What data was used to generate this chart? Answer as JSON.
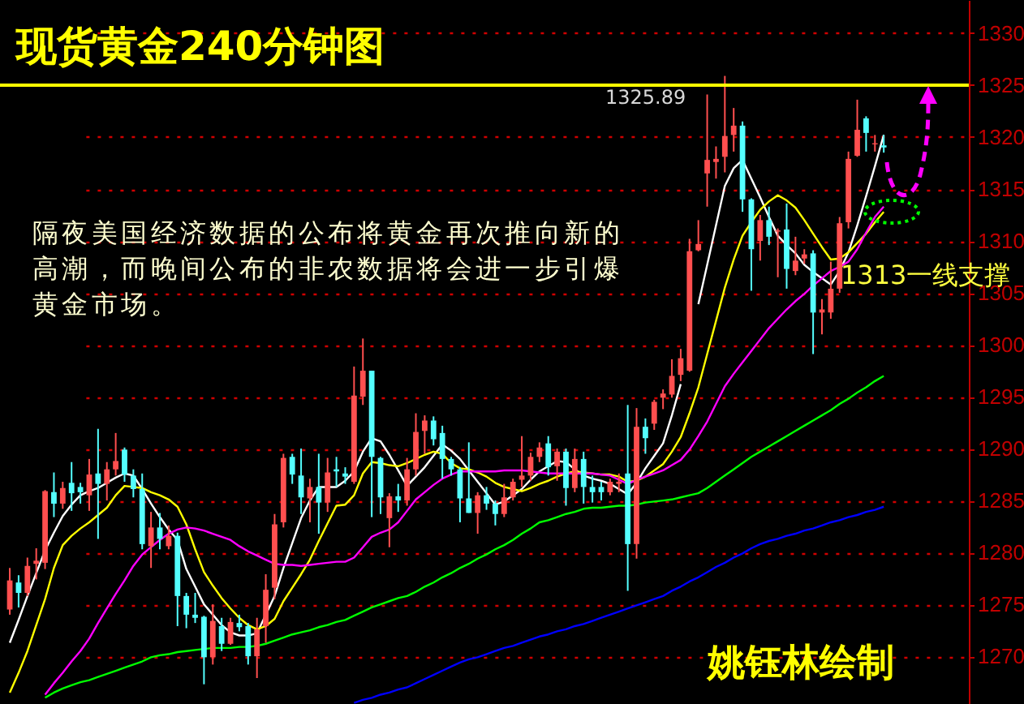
{
  "chart_data": {
    "type": "candlestick",
    "title": "现货黄金240分钟图",
    "annotations": [
      "隔夜美国经济数据的公布将黄金再次推向新的高潮，而晚间公布的非农数据将会进一步引爆黄金市场。",
      "1313一线支撑",
      "姚钰林绘制",
      "1325.89"
    ],
    "categories": [
      null,
      null,
      null,
      null,
      null,
      null,
      null,
      null,
      null,
      null,
      null,
      null,
      null,
      null,
      null,
      null,
      null,
      null,
      null,
      null,
      null,
      null,
      null,
      null,
      null,
      null,
      null,
      null,
      null,
      null,
      null,
      null,
      null,
      null,
      null,
      null,
      null,
      null,
      null,
      null,
      null,
      null,
      null,
      null,
      null,
      null,
      null,
      null,
      null,
      null,
      null,
      null,
      null,
      null,
      null,
      null,
      null,
      null,
      null,
      null,
      null,
      null,
      null,
      null,
      null,
      null,
      null,
      null,
      null,
      null,
      null,
      null,
      null,
      null,
      null,
      null,
      null,
      null,
      null,
      null,
      null,
      null,
      null,
      null,
      null,
      null,
      null,
      null,
      null,
      null,
      null,
      null,
      null,
      null,
      null,
      null,
      null,
      null,
      null,
      null
    ],
    "ohlc": [
      [
        1274.5,
        1278.5,
        1274.0,
        1277.3
      ],
      [
        1277.1,
        1277.8,
        1274.7,
        1276.1
      ],
      [
        1276.1,
        1279.5,
        1275.8,
        1278.7
      ],
      [
        1278.9,
        1280.4,
        1277.4,
        1279.2
      ],
      [
        1279.0,
        1286.0,
        1278.4,
        1285.9
      ],
      [
        1285.8,
        1287.7,
        1283.4,
        1284.7
      ],
      [
        1284.7,
        1286.8,
        1284.2,
        1286.2
      ],
      [
        1286.7,
        1288.7,
        1284.0,
        1285.7
      ],
      [
        1286.3,
        1286.7,
        1284.7,
        1285.8
      ],
      [
        1285.5,
        1289.0,
        1284.0,
        1287.5
      ],
      [
        1287.6,
        1291.9,
        1281.3,
        1286.6
      ],
      [
        1286.6,
        1288.7,
        1285.0,
        1288.0
      ],
      [
        1288.0,
        1291.5,
        1287.4,
        1288.8
      ],
      [
        1289.9,
        1290.1,
        1286.8,
        1287.5
      ],
      [
        1287.4,
        1288.0,
        1285.3,
        1286.1
      ],
      [
        1286.1,
        1287.6,
        1280.3,
        1280.8
      ],
      [
        1280.6,
        1283.9,
        1278.5,
        1282.4
      ],
      [
        1282.4,
        1283.8,
        1280.3,
        1281.3
      ],
      [
        1280.6,
        1282.6,
        1280.3,
        1281.6
      ],
      [
        1281.6,
        1281.9,
        1272.9,
        1275.8
      ],
      [
        1275.8,
        1276.1,
        1272.7,
        1274.0
      ],
      [
        1274.0,
        1276.1,
        1273.2,
        1273.7
      ],
      [
        1273.8,
        1273.9,
        1267.3,
        1269.9
      ],
      [
        1269.9,
        1275.0,
        1269.2,
        1273.4
      ],
      [
        1272.9,
        1273.7,
        1270.5,
        1271.2
      ],
      [
        1271.2,
        1273.7,
        1271.1,
        1273.3
      ],
      [
        1273.2,
        1274.0,
        1272.4,
        1272.8
      ],
      [
        1272.9,
        1273.2,
        1269.2,
        1270.0
      ],
      [
        1270.0,
        1273.7,
        1267.9,
        1272.6
      ],
      [
        1272.9,
        1277.9,
        1271.3,
        1276.4
      ],
      [
        1276.6,
        1283.7,
        1275.5,
        1282.7
      ],
      [
        1282.9,
        1289.5,
        1282.4,
        1289.1
      ],
      [
        1289.2,
        1289.5,
        1286.6,
        1287.5
      ],
      [
        1287.4,
        1290.0,
        1283.7,
        1285.3
      ],
      [
        1285.2,
        1287.1,
        1282.9,
        1286.3
      ],
      [
        1286.3,
        1289.5,
        1281.8,
        1284.8
      ],
      [
        1284.8,
        1289.1,
        1283.9,
        1287.7
      ],
      [
        1288.0,
        1289.2,
        1286.3,
        1287.8
      ],
      [
        1287.6,
        1288.2,
        1286.6,
        1287.3
      ],
      [
        1286.8,
        1297.9,
        1286.6,
        1295.1
      ],
      [
        1295.0,
        1300.6,
        1294.2,
        1297.5
      ],
      [
        1297.5,
        1297.5,
        1283.4,
        1289.2
      ],
      [
        1289.1,
        1289.2,
        1283.7,
        1285.3
      ],
      [
        1283.3,
        1285.7,
        1280.5,
        1285.4
      ],
      [
        1285.4,
        1286.6,
        1283.9,
        1285.0
      ],
      [
        1285.0,
        1289.1,
        1284.5,
        1288.0
      ],
      [
        1288.0,
        1293.4,
        1287.4,
        1291.6
      ],
      [
        1291.7,
        1293.2,
        1289.5,
        1292.7
      ],
      [
        1292.7,
        1293.1,
        1290.3,
        1290.9
      ],
      [
        1291.5,
        1292.2,
        1287.1,
        1289.0
      ],
      [
        1289.0,
        1289.2,
        1287.4,
        1288.0
      ],
      [
        1288.0,
        1288.2,
        1282.9,
        1285.2
      ],
      [
        1285.2,
        1290.6,
        1283.8,
        1283.8
      ],
      [
        1283.8,
        1285.8,
        1281.8,
        1285.5
      ],
      [
        1285.5,
        1286.3,
        1284.1,
        1284.7
      ],
      [
        1284.7,
        1285.0,
        1282.6,
        1283.7
      ],
      [
        1283.7,
        1286.6,
        1283.4,
        1285.3
      ],
      [
        1285.3,
        1287.1,
        1285.0,
        1286.8
      ],
      [
        1287.0,
        1291.2,
        1286.3,
        1287.4
      ],
      [
        1287.4,
        1289.6,
        1286.9,
        1289.2
      ],
      [
        1289.2,
        1290.6,
        1288.7,
        1290.1
      ],
      [
        1290.5,
        1291.2,
        1287.4,
        1288.2
      ],
      [
        1288.3,
        1290.0,
        1286.9,
        1289.7
      ],
      [
        1289.7,
        1290.0,
        1284.5,
        1286.2
      ],
      [
        1286.2,
        1290.0,
        1285.8,
        1289.0
      ],
      [
        1289.0,
        1289.7,
        1284.7,
        1286.3
      ],
      [
        1286.3,
        1287.4,
        1284.8,
        1285.8
      ],
      [
        1286.3,
        1286.8,
        1285.0,
        1285.8
      ],
      [
        1285.8,
        1287.1,
        1285.5,
        1286.8
      ],
      [
        1286.6,
        1287.6,
        1285.8,
        1286.8
      ],
      [
        1287.6,
        1294.2,
        1276.3,
        1280.8
      ],
      [
        1280.8,
        1293.9,
        1279.4,
        1292.1
      ],
      [
        1292.1,
        1292.9,
        1289.5,
        1291.0
      ],
      [
        1292.4,
        1294.7,
        1291.8,
        1294.5
      ],
      [
        1294.9,
        1295.7,
        1293.8,
        1295.3
      ],
      [
        1295.2,
        1298.6,
        1294.9,
        1297.0
      ],
      [
        1297.1,
        1299.6,
        1296.5,
        1298.7
      ],
      [
        1297.5,
        1310.2,
        1297.4,
        1309.0
      ],
      [
        1309.1,
        1312.0,
        1309.0,
        1309.7
      ],
      [
        1316.5,
        1324.1,
        1313.3,
        1317.8
      ],
      [
        1317.6,
        1319.1,
        1316.0,
        1317.9
      ],
      [
        1318.1,
        1325.89,
        1316.6,
        1320.1
      ],
      [
        1320.2,
        1322.8,
        1318.6,
        1321.1
      ],
      [
        1321.1,
        1321.5,
        1312.8,
        1314.0
      ],
      [
        1314.0,
        1314.1,
        1305.2,
        1309.2
      ],
      [
        1310.0,
        1312.5,
        1308.1,
        1312.0
      ],
      [
        1312.0,
        1313.3,
        1309.6,
        1310.4
      ],
      [
        1310.9,
        1311.2,
        1306.5,
        1311.0
      ],
      [
        1311.1,
        1313.6,
        1305.4,
        1307.3
      ],
      [
        1307.1,
        1310.4,
        1306.7,
        1308.1
      ],
      [
        1308.3,
        1309.2,
        1307.8,
        1308.7
      ],
      [
        1308.8,
        1309.1,
        1299.1,
        1303.1
      ],
      [
        1303.1,
        1304.4,
        1301.0,
        1303.4
      ],
      [
        1303.1,
        1308.0,
        1302.5,
        1305.4
      ],
      [
        1305.4,
        1312.3,
        1305.0,
        1311.7
      ],
      [
        1311.8,
        1318.6,
        1311.2,
        1317.9
      ],
      [
        1318.2,
        1323.6,
        1318.1,
        1320.7
      ],
      [
        1321.8,
        1322.0,
        1318.6,
        1320.4
      ],
      [
        1319.3,
        1320.2,
        1318.6,
        1319.4
      ],
      [
        1319.2,
        1320.2,
        1318.5,
        1319.0
      ]
    ],
    "series": [
      {
        "type": "line",
        "color": "#ffffff",
        "values": [
          1271.3,
          1273.5,
          1275.8,
          1278.0,
          1280.2,
          1281.9,
          1283.5,
          1284.6,
          1285.5,
          1285.9,
          1286.2,
          1286.7,
          1287.2,
          1287.6,
          1287.4,
          1286.1,
          1284.7,
          1283.4,
          1282.2,
          1281.2,
          1278.4,
          1276.7,
          1275.0,
          1274.0,
          1273.0,
          1272.3,
          1272.0,
          1272.0,
          1272.2,
          1274.0,
          1275.8,
          1278.5,
          1280.9,
          1283.3,
          1285.0,
          1286.3,
          1286.3,
          1286.3,
          1286.9,
          1287.8,
          1289.7,
          1291.0,
          1290.7,
          1289.4,
          1287.9,
          1286.4,
          1287.3,
          1288.2,
          1289.3,
          1290.4,
          1289.8,
          1289.0,
          1287.9,
          1286.8,
          1285.7,
          1284.6,
          1284.9,
          1285.5,
          1286.1,
          1287.0,
          1287.8,
          1288.3,
          1288.8,
          1288.7,
          1288.0,
          1287.4,
          1287.1,
          1286.9,
          1286.6,
          1286.1,
          1285.6,
          1286.7,
          1288.1,
          1289.3,
          1290.5,
          1293.2,
          1296.2,
          null,
          1303.9,
          1307.7,
          1311.5,
          1315.3,
          1317.0,
          1317.8,
          1316.0,
          1314.2,
          1312.3,
          1310.5,
          1309.6,
          1308.8,
          1307.7,
          1307.0,
          1306.4,
          1305.8,
          1307.1,
          1308.9,
          1311.5,
          1314.3,
          1317.2,
          1320.2
        ]
      },
      {
        "type": "line",
        "color": "#ffff00",
        "values": [
          1266.5,
          1268.4,
          1270.5,
          1273.0,
          1275.5,
          1278.5,
          1280.7,
          1281.6,
          1282.3,
          1282.9,
          1283.6,
          1284.3,
          1285.5,
          1286.4,
          1286.3,
          1286.2,
          1285.8,
          1285.5,
          1285.1,
          1284.4,
          1282.7,
          1280.3,
          1278.1,
          1276.8,
          1275.6,
          1274.6,
          1273.7,
          1273.0,
          1272.6,
          1272.9,
          1273.6,
          1275.3,
          1276.6,
          1277.9,
          1279.3,
          1281.1,
          1282.8,
          1284.5,
          1284.6,
          1285.5,
          1287.6,
          1288.7,
          1288.6,
          1288.4,
          1288.3,
          1288.6,
          1289.0,
          1289.4,
          1289.7,
          1289.5,
          1288.6,
          1288.1,
          1288.0,
          1287.7,
          1287.3,
          1286.7,
          1286.3,
          1286.1,
          1285.9,
          1286.2,
          1286.6,
          1286.9,
          1287.3,
          1287.6,
          1287.8,
          1287.7,
          1287.6,
          1287.5,
          1287.5,
          1287.3,
          1286.8,
          1286.9,
          1287.3,
          1287.9,
          1288.5,
          1289.7,
          1291.1,
          1293.4,
          1295.9,
          1299.1,
          1302.3,
          1305.5,
          1308.2,
          1310.5,
          1311.8,
          1313.0,
          1313.8,
          1314.4,
          1313.9,
          1313.2,
          1312.0,
          1310.7,
          1309.4,
          1308.2,
          1308.3,
          1308.9,
          1309.8,
          1310.7,
          1311.8,
          1312.8
        ]
      },
      {
        "type": "line",
        "color": "#ff00ff",
        "values": [
          null,
          null,
          null,
          null,
          1266.3,
          1267.4,
          1268.4,
          1269.5,
          1270.5,
          1271.7,
          1273.2,
          1274.6,
          1276.0,
          1277.3,
          1278.7,
          1279.8,
          1280.5,
          1281.2,
          1281.8,
          1282.2,
          1282.4,
          1282.3,
          1282.1,
          1281.8,
          1281.5,
          1281.2,
          1280.6,
          1280.1,
          1279.7,
          1279.3,
          1278.9,
          1278.8,
          1278.8,
          1278.7,
          1278.8,
          1278.9,
          1279.0,
          1279.1,
          1279.1,
          1279.5,
          1280.5,
          1281.5,
          1281.9,
          1282.2,
          1282.9,
          1284.0,
          1285.1,
          1285.8,
          1286.5,
          1287.1,
          1287.5,
          1287.8,
          1287.8,
          1287.8,
          1287.8,
          1287.8,
          1287.9,
          1287.9,
          1287.9,
          1287.8,
          1287.7,
          1287.6,
          1287.6,
          1287.6,
          1287.6,
          1287.6,
          1287.6,
          1287.5,
          1287.4,
          1287.0,
          1286.6,
          1287.0,
          1287.3,
          1287.6,
          1287.9,
          1288.4,
          1288.9,
          1289.9,
          1291.2,
          1292.6,
          1294.3,
          1296.0,
          1297.2,
          1298.3,
          1299.4,
          1300.5,
          1301.6,
          1302.5,
          1303.4,
          1304.2,
          1304.9,
          1305.7,
          1306.4,
          1307.1,
          1307.5,
          1308.0,
          1309.2,
          1310.8,
          1312.3,
          1313.3
        ]
      },
      {
        "type": "line",
        "color": "#00ff00",
        "values": [
          null,
          null,
          null,
          null,
          1266.0,
          1266.5,
          1266.9,
          1267.2,
          1267.5,
          1267.7,
          1268.0,
          1268.3,
          1268.6,
          1268.9,
          1269.2,
          1269.5,
          1269.9,
          1270.1,
          1270.2,
          1270.4,
          1270.5,
          1270.6,
          1270.7,
          1270.8,
          1270.8,
          1270.8,
          1270.9,
          1270.9,
          1271.0,
          1271.2,
          1271.5,
          1271.8,
          1272.1,
          1272.3,
          1272.5,
          1272.8,
          1273.0,
          1273.3,
          1273.5,
          1273.9,
          1274.3,
          1274.7,
          1275.0,
          1275.3,
          1275.6,
          1275.8,
          1276.2,
          1276.7,
          1277.1,
          1277.6,
          1278.0,
          1278.5,
          1278.9,
          1279.4,
          1279.8,
          1280.3,
          1280.7,
          1281.2,
          1281.8,
          1282.3,
          1282.9,
          1283.1,
          1283.4,
          1283.7,
          1283.9,
          1284.2,
          1284.3,
          1284.3,
          1284.4,
          1284.5,
          1284.5,
          1284.6,
          1284.8,
          1284.9,
          1285.0,
          1285.1,
          1285.3,
          1285.5,
          1285.7,
          1286.2,
          1286.8,
          1287.4,
          1288.0,
          1288.6,
          1289.2,
          1289.7,
          1290.2,
          1290.7,
          1291.2,
          1291.7,
          1292.2,
          1292.7,
          1293.2,
          1293.7,
          1294.3,
          1294.8,
          1295.4,
          1295.9,
          1296.5,
          1297.0
        ]
      },
      {
        "type": "line",
        "color": "#0000ff",
        "values": [
          null,
          null,
          null,
          null,
          null,
          null,
          null,
          null,
          null,
          null,
          null,
          null,
          null,
          null,
          null,
          null,
          null,
          null,
          null,
          null,
          null,
          null,
          null,
          null,
          null,
          null,
          null,
          null,
          null,
          null,
          null,
          null,
          null,
          null,
          null,
          null,
          null,
          null,
          null,
          1265.5,
          1265.8,
          1266.0,
          1266.3,
          1266.5,
          1266.8,
          1267.0,
          1267.4,
          1267.8,
          1268.2,
          1268.6,
          1269.0,
          1269.4,
          1269.7,
          1269.9,
          1270.2,
          1270.5,
          1270.8,
          1271.0,
          1271.3,
          1271.6,
          1271.9,
          1272.1,
          1272.4,
          1272.6,
          1272.9,
          1273.1,
          1273.4,
          1273.7,
          1274.0,
          1274.3,
          1274.6,
          1274.9,
          1275.2,
          1275.5,
          1275.8,
          1276.3,
          1276.7,
          1277.2,
          1277.6,
          1278.1,
          1278.6,
          1279.0,
          1279.5,
          1279.9,
          1280.4,
          1280.8,
          1281.1,
          1281.3,
          1281.6,
          1281.8,
          1282.1,
          1282.3,
          1282.6,
          1282.9,
          1283.1,
          1283.4,
          1283.6,
          1283.9,
          1284.1,
          1284.4
        ]
      }
    ],
    "ref_lines": [
      {
        "axis": "y",
        "value": 1325,
        "color": "#ffff00"
      }
    ],
    "ylim": [
      1265.4,
      1333.2
    ],
    "yticks": [
      1270,
      1275,
      1280,
      1285,
      1290,
      1295,
      1300,
      1305,
      1310,
      1315,
      1320,
      1325,
      1330
    ],
    "grid": "y",
    "tick_labels": "y"
  }
}
